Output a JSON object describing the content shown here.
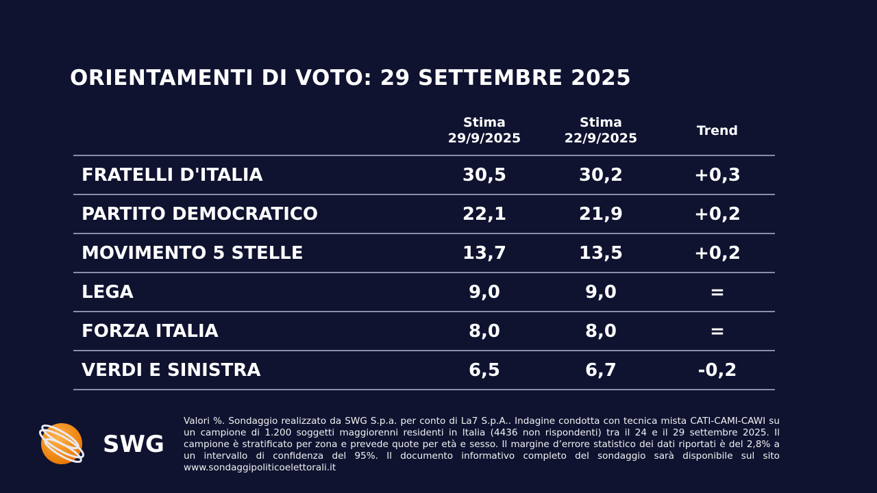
{
  "title": "ORIENTAMENTI DI VOTO: 29 SETTEMBRE 2025",
  "columns": [
    {
      "line1": "Stima",
      "line2": "29/9/2025"
    },
    {
      "line1": "Stima",
      "line2": "22/9/2025"
    },
    {
      "line1": "Trend",
      "line2": ""
    }
  ],
  "rows": [
    {
      "party": "FRATELLI D'ITALIA",
      "current": "30,5",
      "previous": "30,2",
      "trend": "+0,3"
    },
    {
      "party": "PARTITO DEMOCRATICO",
      "current": "22,1",
      "previous": "21,9",
      "trend": "+0,2"
    },
    {
      "party": "MOVIMENTO 5 STELLE",
      "current": "13,7",
      "previous": "13,5",
      "trend": "+0,2"
    },
    {
      "party": "LEGA",
      "current": "9,0",
      "previous": "9,0",
      "trend": "="
    },
    {
      "party": "FORZA ITALIA",
      "current": "8,0",
      "previous": "8,0",
      "trend": "="
    },
    {
      "party": "VERDI E SINISTRA",
      "current": "6,5",
      "previous": "6,7",
      "trend": "-0,2"
    }
  ],
  "logo": {
    "text": "SWG",
    "icon": "orange-globe-icon",
    "color": "#f39200"
  },
  "footnote": "Valori %. Sondaggio realizzato da SWG S.p.a. per conto di La7 S.p.A.. Indagine condotta con tecnica mista CATI-CAMI-CAWI su un campione di 1.200 soggetti maggiorenni residenti in Italia (4436 non rispondenti) tra il 24 e il 29 settembre 2025. Il campione è stratificato per zona e prevede quote per età e sesso. Il margine d’errore statistico dei dati riportati è del 2,8% a un intervallo di confidenza del 95%. Il documento informativo completo del sondaggio sarà disponibile sul sito www.sondaggipoliticoelettorali.it"
}
